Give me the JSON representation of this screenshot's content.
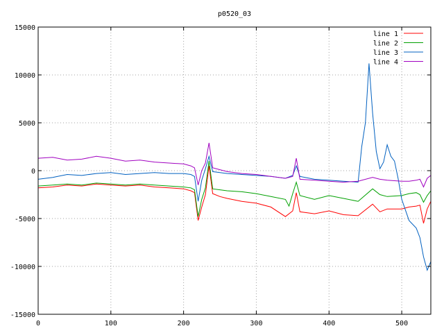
{
  "chart_data": {
    "type": "line",
    "title": "p0520_03",
    "xlabel": "",
    "ylabel": "",
    "xlim": [
      0,
      540
    ],
    "ylim": [
      -15000,
      15000
    ],
    "xticks": [
      0,
      100,
      200,
      300,
      400,
      500
    ],
    "yticks": [
      -15000,
      -10000,
      -5000,
      0,
      5000,
      10000,
      15000
    ],
    "grid": true,
    "legend_position": "top-right",
    "series": [
      {
        "name": "line 1",
        "color": "#ff0000",
        "x": [
          0,
          20,
          40,
          60,
          80,
          100,
          120,
          140,
          160,
          180,
          200,
          210,
          215,
          220,
          225,
          230,
          235,
          240,
          250,
          260,
          280,
          300,
          320,
          340,
          350,
          355,
          360,
          380,
          400,
          420,
          440,
          460,
          470,
          480,
          500,
          510,
          520,
          525,
          530,
          535,
          540
        ],
        "y": [
          -1800,
          -1700,
          -1500,
          -1600,
          -1400,
          -1500,
          -1600,
          -1500,
          -1700,
          -1800,
          -1900,
          -2100,
          -2300,
          -5200,
          -3800,
          -2500,
          500,
          -2400,
          -2700,
          -2900,
          -3200,
          -3400,
          -3800,
          -4800,
          -4200,
          -2300,
          -4300,
          -4500,
          -4200,
          -4600,
          -4700,
          -3500,
          -4300,
          -4000,
          -4000,
          -3800,
          -3700,
          -3600,
          -5500,
          -4000,
          -3200
        ]
      },
      {
        "name": "line 2",
        "color": "#00a000",
        "x": [
          0,
          20,
          40,
          60,
          80,
          100,
          120,
          140,
          160,
          180,
          200,
          210,
          215,
          220,
          225,
          230,
          235,
          240,
          250,
          260,
          280,
          300,
          320,
          340,
          345,
          350,
          355,
          360,
          380,
          400,
          420,
          440,
          460,
          470,
          480,
          500,
          510,
          520,
          525,
          530,
          535,
          540
        ],
        "y": [
          -1600,
          -1500,
          -1400,
          -1500,
          -1300,
          -1400,
          -1500,
          -1400,
          -1500,
          -1600,
          -1700,
          -1800,
          -2000,
          -4800,
          -3000,
          -1800,
          1000,
          -1900,
          -2000,
          -2100,
          -2200,
          -2400,
          -2700,
          -3000,
          -3700,
          -2400,
          -1200,
          -2600,
          -3000,
          -2600,
          -2900,
          -3200,
          -1900,
          -2500,
          -2700,
          -2600,
          -2400,
          -2300,
          -2500,
          -3300,
          -2600,
          -2100
        ]
      },
      {
        "name": "line 3",
        "color": "#0060c0",
        "x": [
          0,
          20,
          40,
          60,
          80,
          100,
          120,
          140,
          160,
          180,
          200,
          210,
          215,
          220,
          225,
          230,
          235,
          240,
          250,
          260,
          280,
          300,
          320,
          340,
          350,
          355,
          360,
          380,
          400,
          420,
          440,
          445,
          450,
          455,
          460,
          465,
          470,
          475,
          480,
          485,
          490,
          495,
          500,
          510,
          520,
          525,
          530,
          535,
          540
        ],
        "y": [
          -900,
          -700,
          -400,
          -500,
          -300,
          -200,
          -400,
          -300,
          -200,
          -300,
          -300,
          -400,
          -600,
          -3200,
          -1000,
          200,
          1500,
          -100,
          -200,
          -300,
          -400,
          -500,
          -600,
          -800,
          -500,
          500,
          -600,
          -900,
          -1000,
          -1100,
          -1200,
          2500,
          5000,
          11200,
          6000,
          2000,
          200,
          900,
          2700,
          1500,
          1000,
          -800,
          -3000,
          -5200,
          -6000,
          -7000,
          -9000,
          -10400,
          -9500
        ]
      },
      {
        "name": "line 4",
        "color": "#a000c0",
        "x": [
          0,
          20,
          40,
          60,
          80,
          100,
          120,
          140,
          160,
          180,
          200,
          210,
          215,
          220,
          225,
          230,
          235,
          240,
          250,
          260,
          280,
          300,
          320,
          340,
          350,
          355,
          360,
          380,
          400,
          420,
          440,
          460,
          470,
          480,
          500,
          510,
          520,
          525,
          530,
          535,
          540
        ],
        "y": [
          1300,
          1400,
          1100,
          1200,
          1500,
          1300,
          1000,
          1100,
          900,
          800,
          700,
          500,
          300,
          -1500,
          0,
          800,
          2900,
          300,
          100,
          -100,
          -300,
          -400,
          -600,
          -800,
          -600,
          1300,
          -900,
          -1000,
          -1100,
          -1200,
          -1100,
          -700,
          -900,
          -1000,
          -1100,
          -1100,
          -1000,
          -900,
          -1700,
          -800,
          -500
        ]
      }
    ]
  }
}
